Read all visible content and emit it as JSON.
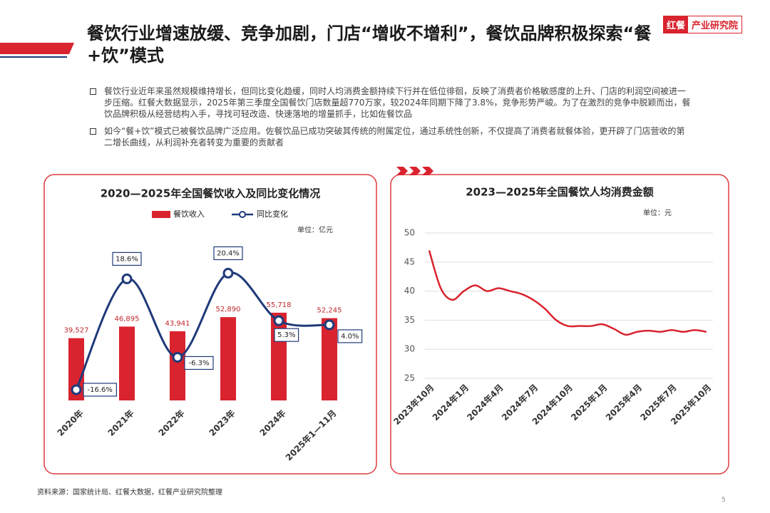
{
  "header": {
    "title": "餐饮行业增速放缓、竞争加剧，门店“增收不增利”，餐饮品牌积极探索“餐+饮”模式",
    "logo_mark": "红餐",
    "logo_text": "产业研究院"
  },
  "bullets": [
    "餐饮行业近年来虽然规模维持增长，但同比变化趋缓，同时人均消费金额持续下行并在低位徘徊，反映了消费者价格敏感度的上升、门店的利润空间被进一步压缩。红餐大数据显示，2025年第三季度全国餐饮门店数量超770万家，较2024年同期下降了3.8%，竞争形势严峻。为了在激烈的竞争中脱颖而出，餐饮品牌积极从经营结构入手，寻找可轻改造、快速落地的增量抓手，比如佐餐饮品",
    "如今“餐+饮”模式已被餐饮品牌广泛应用。佐餐饮品已成功突破其传统的附属定位，通过系统性创新，不仅提高了消费者就餐体验，更开辟了门店营收的第二增长曲线，从利润补充者转变为重要的贡献者"
  ],
  "chart_data": [
    {
      "type": "bar",
      "title": "2020—2025年全国餐饮收入及同比变化情况",
      "unit": "单位：亿元",
      "categories": [
        "2020年",
        "2021年",
        "2022年",
        "2023年",
        "2024年",
        "2025年1—11月"
      ],
      "series": [
        {
          "name": "餐饮收入",
          "type": "bar",
          "color": "#d9232e",
          "values": [
            39527,
            46895,
            43941,
            52890,
            55718,
            52245
          ],
          "value_labels": [
            "39,527",
            "46,895",
            "43,941",
            "52,890",
            "55,718",
            "52,245"
          ]
        },
        {
          "name": "同比变化",
          "type": "line",
          "axis": "y2",
          "color": "#1f3a7a",
          "values": [
            -16.6,
            18.6,
            -6.3,
            20.4,
            5.3,
            4.0
          ],
          "value_labels": [
            "-16.6%",
            "18.6%",
            "-6.3%",
            "20.4%",
            "5.3%",
            "4.0%"
          ]
        }
      ],
      "ylim": [
        0,
        100000
      ],
      "y2lim": [
        -20,
        30
      ],
      "legend": "top"
    },
    {
      "type": "line",
      "title": "2023—2025年全国餐饮人均消费金额",
      "unit": "单位：元",
      "categories": [
        "2023年10月",
        null,
        null,
        "2024年1月",
        null,
        null,
        "2024年4月",
        null,
        null,
        "2024年7月",
        null,
        null,
        "2024年10月",
        null,
        null,
        "2025年1月",
        null,
        null,
        "2025年4月",
        null,
        null,
        "2025年7月",
        null,
        null,
        "2025年10月"
      ],
      "values": [
        47,
        40.5,
        38.5,
        40,
        41,
        40,
        40.5,
        40,
        39.5,
        38.5,
        37,
        35,
        34,
        34,
        34,
        34.3,
        33.5,
        32.5,
        33,
        33.2,
        33,
        33.3,
        33,
        33.3,
        33
      ],
      "color": "#d9232e",
      "ylim": [
        25,
        50
      ],
      "yticks": [
        25,
        30,
        35,
        40,
        45,
        50
      ],
      "grid": true
    }
  ],
  "footer": {
    "source": "资料来源：国家统计局、红餐大数据，红餐产业研究院整理",
    "page": "5"
  }
}
